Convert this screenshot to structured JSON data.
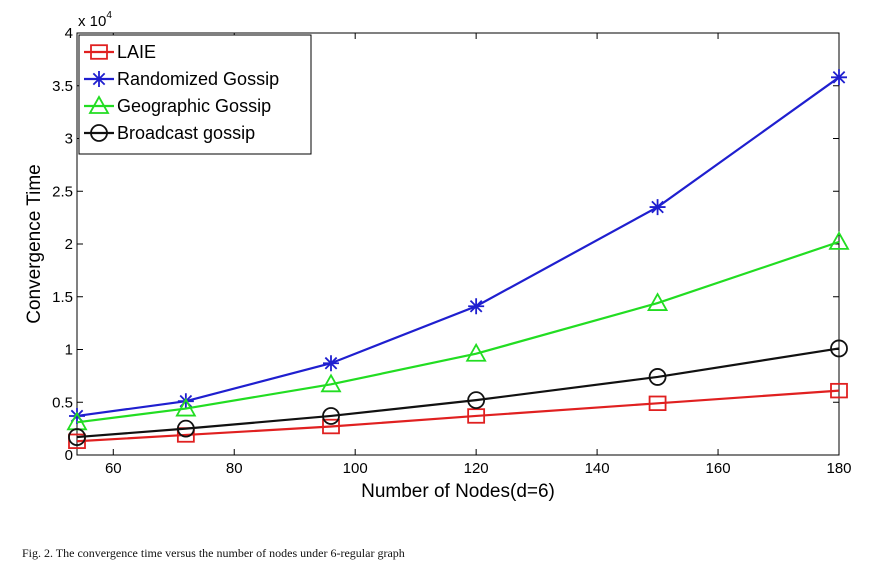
{
  "chart_data": {
    "type": "line",
    "xlabel": "Number of Nodes(d=6)",
    "ylabel": "Convergence Time",
    "y_multiplier": "x 10",
    "y_multiplier_exp": "4",
    "xlim": [
      54,
      180
    ],
    "ylim": [
      0,
      4
    ],
    "x_ticks": [
      60,
      80,
      100,
      120,
      140,
      160,
      180
    ],
    "y_ticks": [
      0,
      0.5,
      1,
      1.5,
      2,
      2.5,
      3,
      3.5,
      4
    ],
    "x": [
      54,
      72,
      96,
      120,
      150,
      180
    ],
    "legend_position": "top-left",
    "grid": false,
    "series": [
      {
        "name": "LAIE",
        "color": "#e02020",
        "marker": "square",
        "values": [
          0.13,
          0.19,
          0.27,
          0.37,
          0.49,
          0.61
        ]
      },
      {
        "name": "Randomized Gossip",
        "color": "#1f1fcf",
        "marker": "star",
        "values": [
          0.37,
          0.51,
          0.87,
          1.41,
          2.35,
          3.58
        ]
      },
      {
        "name": "Geographic Gossip",
        "color": "#22dd22",
        "marker": "triangle",
        "values": [
          0.31,
          0.44,
          0.67,
          0.96,
          1.44,
          2.02
        ]
      },
      {
        "name": "Broadcast gossip",
        "color": "#111111",
        "marker": "circle",
        "values": [
          0.17,
          0.25,
          0.37,
          0.52,
          0.74,
          1.01
        ]
      }
    ]
  },
  "caption": "Fig. 2.   The convergence time versus the number of nodes under 6-regular graph"
}
